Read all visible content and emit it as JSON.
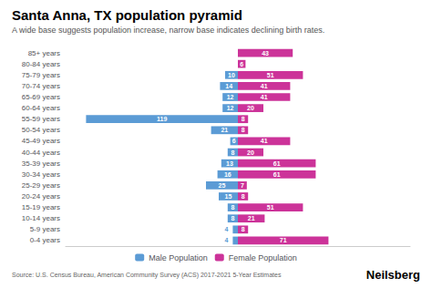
{
  "chart_data": {
    "type": "bar",
    "orientation": "horizontal",
    "title": "Santa Anna, TX population pyramid",
    "subtitle": "A wide base suggests population increase, narrow base indicates declining birth rates.",
    "annotations": [
      "Source: U.S. Census Bureau, American Community Survey (ACS) 2017-2021 5-Year Estimates",
      "Neilsberg"
    ],
    "categories": [
      "0-4 years",
      "5-9 years",
      "10-14 years",
      "15-19 years",
      "20-24 years",
      "25-29 years",
      "30-34 years",
      "35-39 years",
      "40-44 years",
      "45-49 years",
      "50-54 years",
      "55-59 years",
      "60-64 years",
      "65-69 years",
      "70-74 years",
      "75-79 years",
      "80-84 years",
      "85+ years"
    ],
    "series": [
      {
        "name": "Male Population",
        "color": "#5B9BD5",
        "values": [
          4,
          4,
          8,
          8,
          15,
          25,
          16,
          13,
          8,
          6,
          21,
          119,
          12,
          12,
          14,
          10,
          0,
          0
        ]
      },
      {
        "name": "Female Population",
        "color": "#CC3399",
        "values": [
          71,
          8,
          21,
          51,
          8,
          7,
          61,
          61,
          20,
          41,
          8,
          8,
          20,
          41,
          41,
          51,
          6,
          43
        ]
      }
    ],
    "xlim": [
      -135,
      135
    ],
    "xticks": [],
    "tick_labels": "y",
    "data_labels": true,
    "grid": false,
    "legend": "bottom"
  }
}
